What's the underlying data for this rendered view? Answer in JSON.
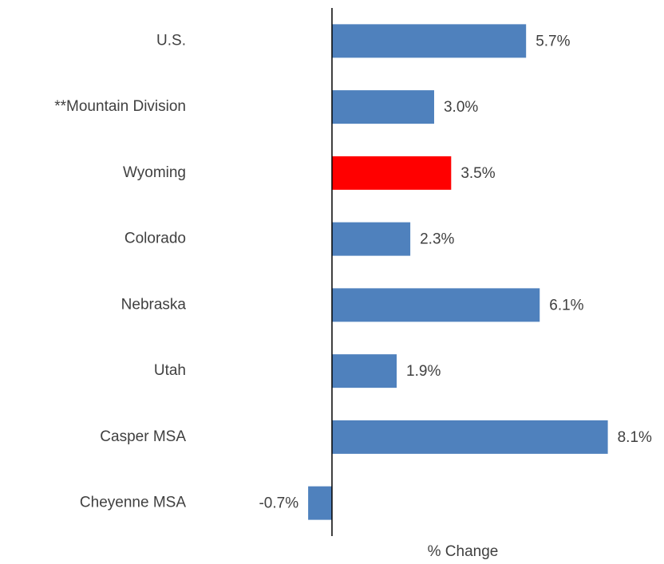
{
  "chart_data": {
    "type": "barh",
    "x_label": "% Change",
    "categories": [
      "U.S.",
      "**Mountain Division",
      "Wyoming",
      "Colorado",
      "Nebraska",
      "Utah",
      "Casper MSA",
      "Cheyenne MSA"
    ],
    "values": [
      5.7,
      3.0,
      3.5,
      2.3,
      6.1,
      1.9,
      8.1,
      -0.7
    ],
    "value_labels": [
      "5.7%",
      "3.0%",
      "3.5%",
      "2.3%",
      "6.1%",
      "1.9%",
      "8.1%",
      "-0.7%"
    ],
    "colors": [
      "#4f81bd",
      "#4f81bd",
      "#ff0000",
      "#4f81bd",
      "#4f81bd",
      "#4f81bd",
      "#4f81bd",
      "#4f81bd"
    ],
    "xlim": [
      -1,
      9
    ]
  }
}
